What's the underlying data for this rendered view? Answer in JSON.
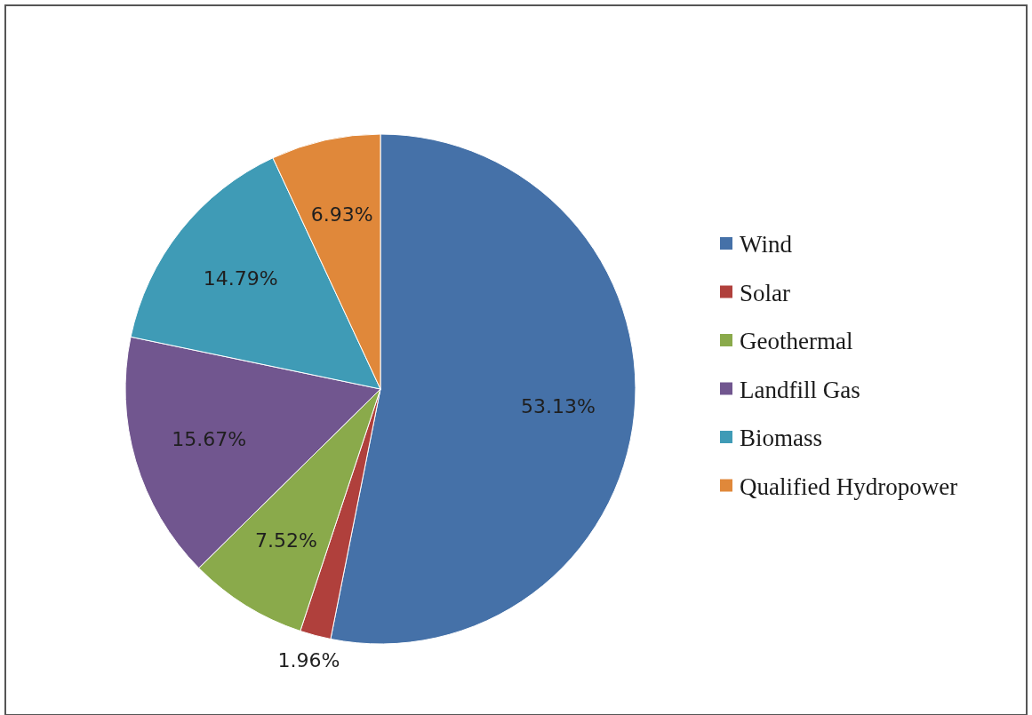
{
  "chart_data": {
    "type": "pie",
    "categories": [
      "Wind",
      "Solar",
      "Geothermal",
      "Landfill Gas",
      "Biomass",
      "Qualified Hydropower"
    ],
    "values": [
      53.13,
      1.96,
      7.52,
      15.67,
      14.79,
      6.93
    ],
    "value_labels": [
      "53.13%",
      "1.96%",
      "7.52%",
      "15.67%",
      "14.79%",
      "6.93%"
    ],
    "colors": [
      "#4571a8",
      "#b0403c",
      "#8aaa4b",
      "#71568f",
      "#3f9bb6",
      "#e0883a"
    ],
    "legend": "right"
  }
}
